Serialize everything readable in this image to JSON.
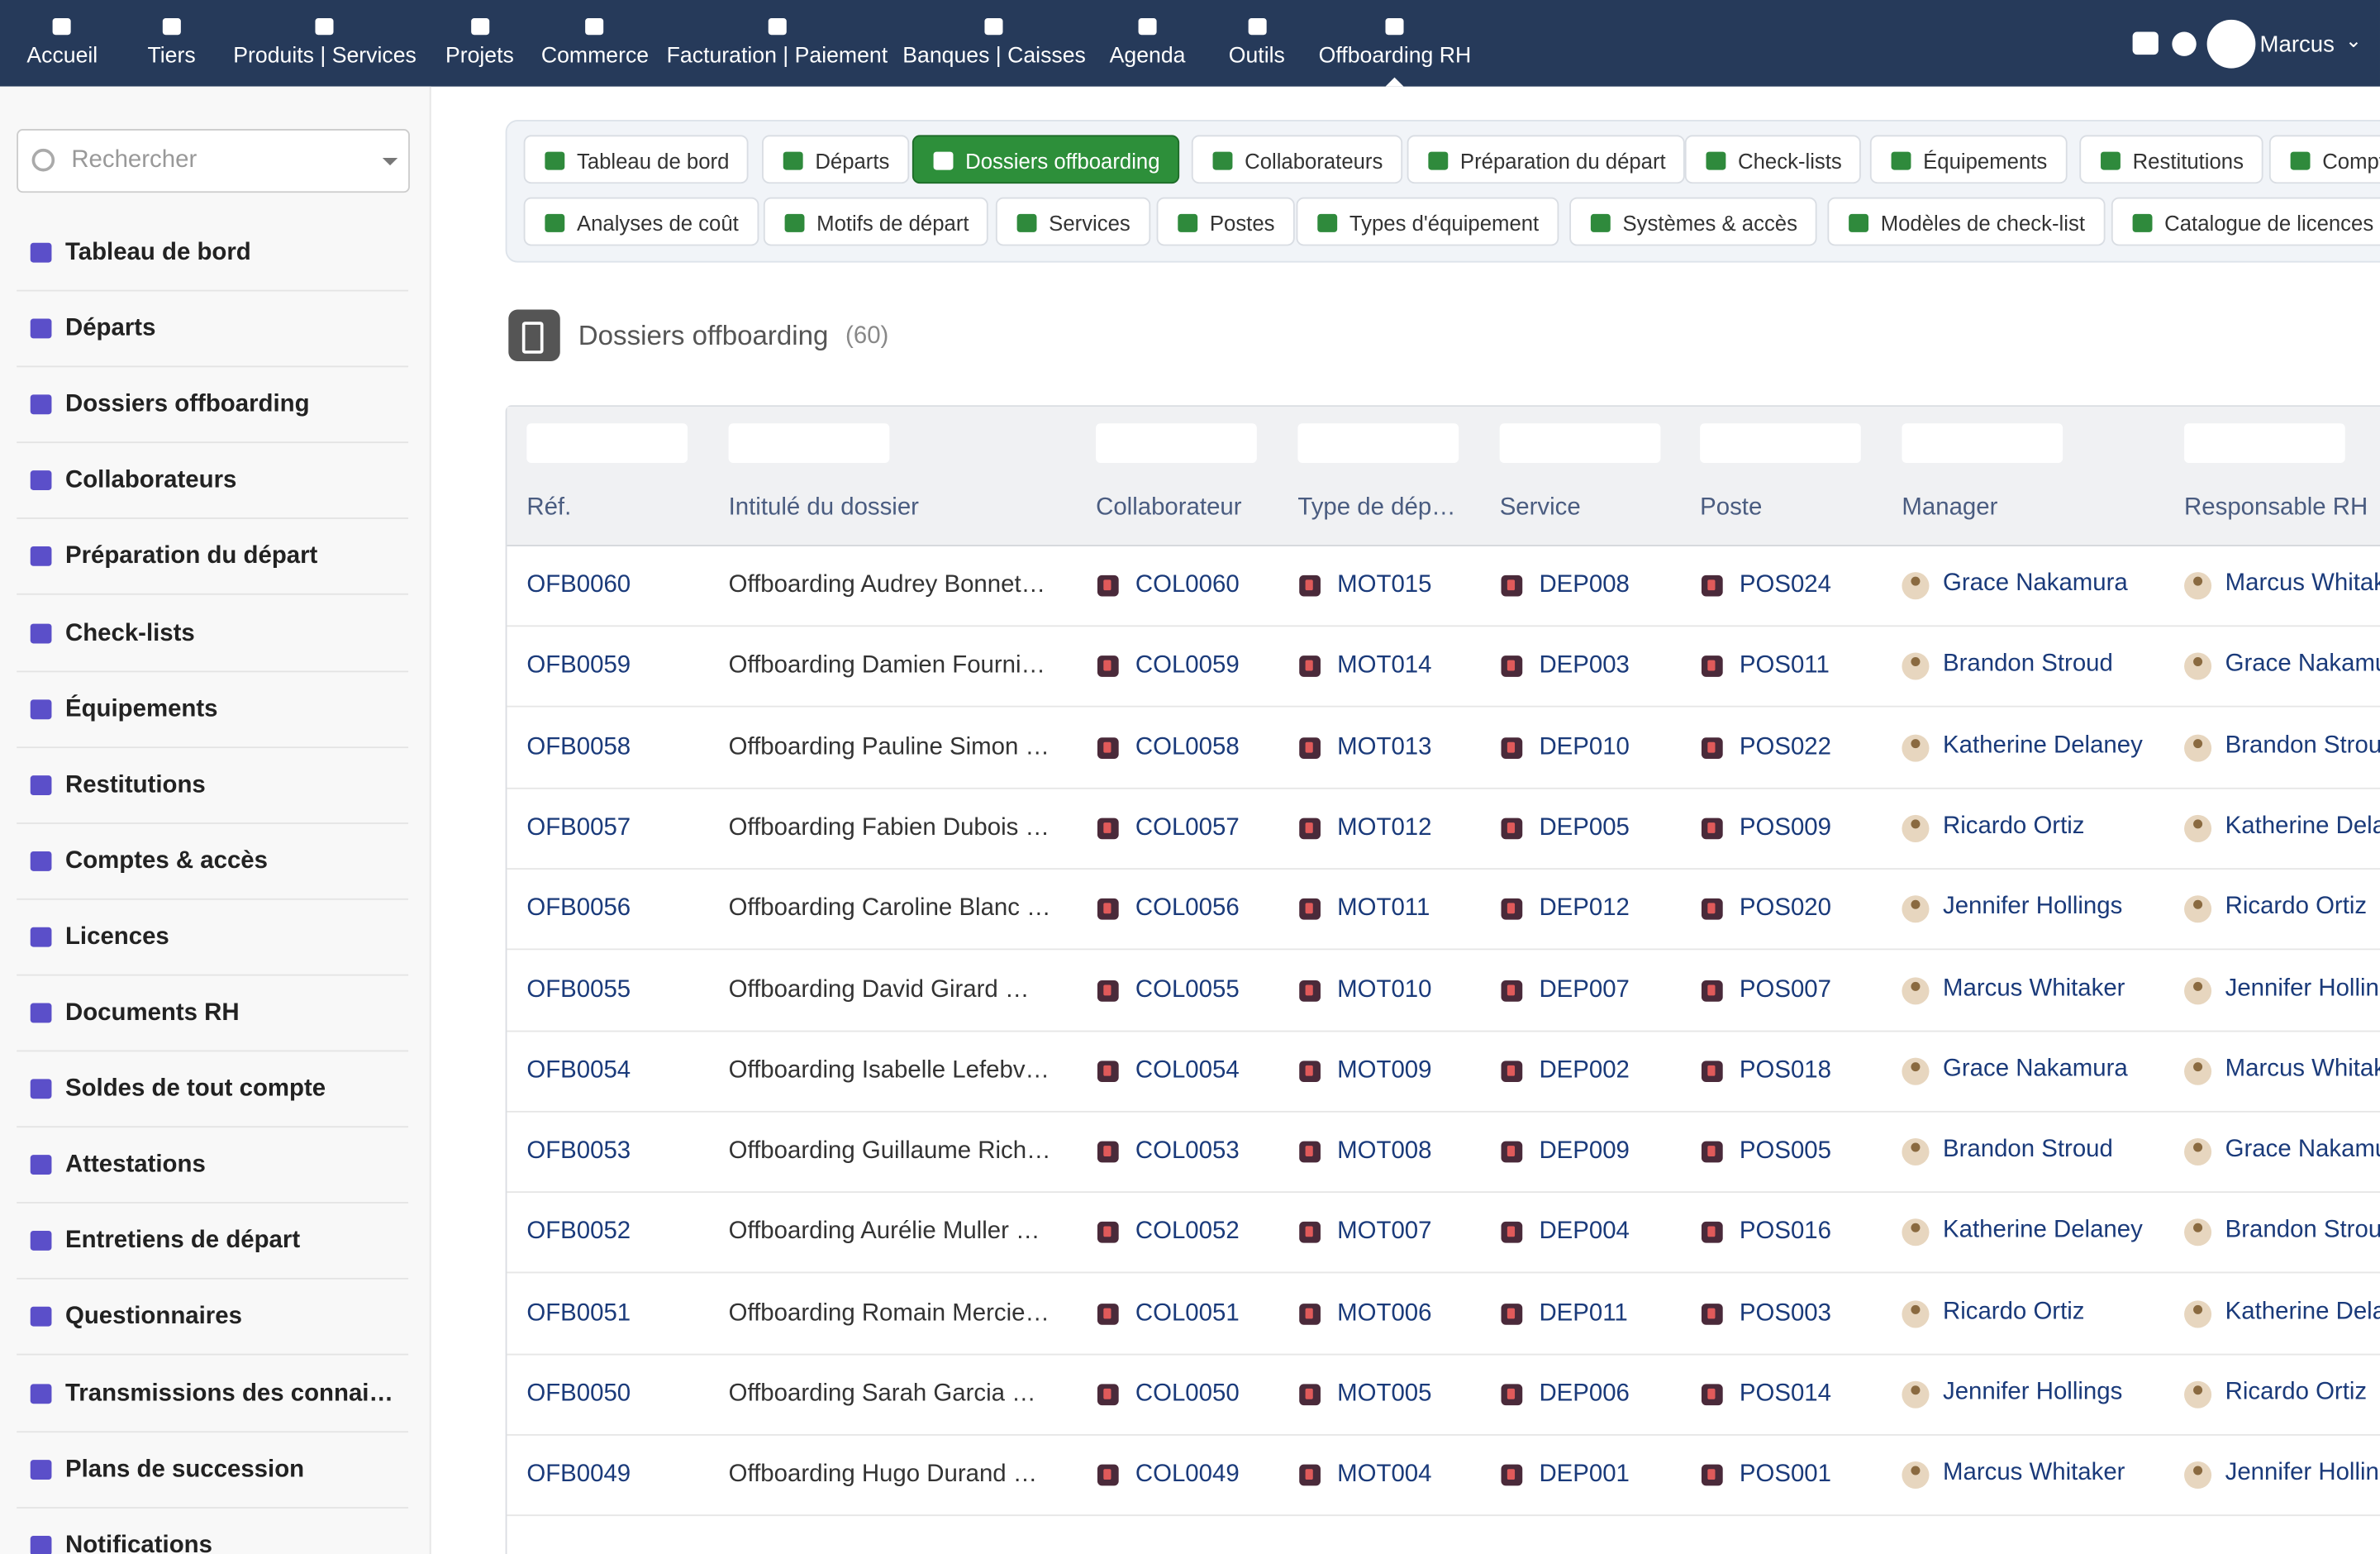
{
  "topnav": {
    "items": [
      "Accueil",
      "Tiers",
      "Produits | Services",
      "Projets",
      "Commerce",
      "Facturation | Paiement",
      "Banques | Caisses",
      "Agenda",
      "Outils",
      "Offboarding RH"
    ],
    "user": "Marcus"
  },
  "sidebar": {
    "search": "Rechercher",
    "items": [
      "Tableau de bord",
      "Départs",
      "Dossiers offboarding",
      "Collaborateurs",
      "Préparation du départ",
      "Check-lists",
      "Équipements",
      "Restitutions",
      "Comptes & accès",
      "Licences",
      "Documents RH",
      "Soldes de tout compte",
      "Attestations",
      "Entretiens de départ",
      "Questionnaires",
      "Transmissions des connai…",
      "Plans de succession",
      "Notifications"
    ]
  },
  "tabs": {
    "row1": [
      "Tableau de bord",
      "Départs",
      "Dossiers offboarding",
      "Collaborateurs",
      "Préparation du départ",
      "Check-lists",
      "Équipements",
      "Restitutions",
      "Comptes & accès"
    ],
    "row2": [
      "Analyses de coût",
      "Motifs de départ",
      "Services",
      "Postes",
      "Types d'équipement",
      "Systèmes & accès",
      "Modèles de check-list",
      "Catalogue de licences"
    ]
  },
  "header": {
    "title": "Dossiers offboarding",
    "count": "(60)"
  },
  "table": {
    "columns": [
      "Réf.",
      "Intitulé du dossier",
      "Collaborateur",
      "Type de dép…",
      "Service",
      "Poste",
      "Manager",
      "Responsable RH"
    ],
    "rows": [
      [
        "OFB0060",
        "Offboarding Audrey Bonnet…",
        "COL0060",
        "MOT015",
        "DEP008",
        "POS024",
        "Grace Nakamura",
        "Marcus Whitaker"
      ],
      [
        "OFB0059",
        "Offboarding Damien Fourni…",
        "COL0059",
        "MOT014",
        "DEP003",
        "POS011",
        "Brandon Stroud",
        "Grace Nakamura"
      ],
      [
        "OFB0058",
        "Offboarding Pauline Simon …",
        "COL0058",
        "MOT013",
        "DEP010",
        "POS022",
        "Katherine Delaney",
        "Brandon Stroud"
      ],
      [
        "OFB0057",
        "Offboarding Fabien Dubois …",
        "COL0057",
        "MOT012",
        "DEP005",
        "POS009",
        "Ricardo Ortiz",
        "Katherine Delaney"
      ],
      [
        "OFB0056",
        "Offboarding Caroline Blanc …",
        "COL0056",
        "MOT011",
        "DEP012",
        "POS020",
        "Jennifer Hollings",
        "Ricardo Ortiz"
      ],
      [
        "OFB0055",
        "Offboarding David Girard …",
        "COL0055",
        "MOT010",
        "DEP007",
        "POS007",
        "Marcus Whitaker",
        "Jennifer Hollings"
      ],
      [
        "OFB0054",
        "Offboarding Isabelle Lefebv…",
        "COL0054",
        "MOT009",
        "DEP002",
        "POS018",
        "Grace Nakamura",
        "Marcus Whitaker"
      ],
      [
        "OFB0053",
        "Offboarding Guillaume Rich…",
        "COL0053",
        "MOT008",
        "DEP009",
        "POS005",
        "Brandon Stroud",
        "Grace Nakamura"
      ],
      [
        "OFB0052",
        "Offboarding Aurélie Muller …",
        "COL0052",
        "MOT007",
        "DEP004",
        "POS016",
        "Katherine Delaney",
        "Brandon Stroud"
      ],
      [
        "OFB0051",
        "Offboarding Romain Mercie…",
        "COL0051",
        "MOT006",
        "DEP011",
        "POS003",
        "Ricardo Ortiz",
        "Katherine Delaney"
      ],
      [
        "OFB0050",
        "Offboarding Sarah Garcia …",
        "COL0050",
        "MOT005",
        "DEP006",
        "POS014",
        "Jennifer Hollings",
        "Ricardo Ortiz"
      ],
      [
        "OFB0049",
        "Offboarding Hugo Durand …",
        "COL0049",
        "MOT004",
        "DEP001",
        "POS001",
        "Marcus Whitaker",
        "Jennifer Hollings"
      ]
    ]
  }
}
